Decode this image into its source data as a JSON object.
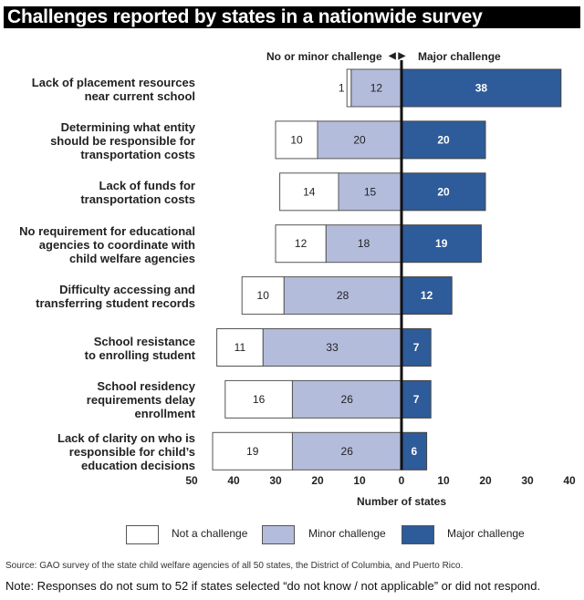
{
  "title": "Challenges reported by states in a nationwide survey",
  "direction_labels": {
    "left": "No or minor challenge",
    "arrows": "◀ ▶",
    "right": "Major challenge"
  },
  "chart_data": {
    "type": "bar",
    "subtype": "diverging-stacked-horizontal",
    "title": "Challenges reported by states in a nationwide survey",
    "xlabel": "Number of states",
    "ylabel": "",
    "xlim": [
      -50,
      40
    ],
    "x_ticks": [
      -50,
      -40,
      -30,
      -20,
      -10,
      0,
      10,
      20,
      30,
      40
    ],
    "x_tick_labels": [
      "50",
      "40",
      "30",
      "20",
      "10",
      "0",
      "10",
      "20",
      "30",
      "40"
    ],
    "categories": [
      "Lack of placement resources\nnear current school",
      "Determining what entity\nshould be responsible for\ntransportation costs",
      "Lack of funds for\ntransportation costs",
      "No requirement for educational\nagencies to coordinate with\nchild welfare agencies",
      "Difficulty accessing and\ntransferring student records",
      "School resistance\nto enrolling student",
      "School residency\nrequirements delay\nenrollment",
      "Lack of clarity on who is\nresponsible for child’s\neducation decisions"
    ],
    "series": [
      {
        "name": "Not a challenge",
        "side": "left-outer",
        "color": "#ffffff",
        "values": [
          1,
          10,
          14,
          12,
          10,
          11,
          16,
          19
        ]
      },
      {
        "name": "Minor challenge",
        "side": "left-inner",
        "color": "#b4bcdc",
        "values": [
          12,
          20,
          15,
          18,
          28,
          33,
          26,
          26
        ]
      },
      {
        "name": "Major challenge",
        "side": "right",
        "color": "#2e5b99",
        "values": [
          38,
          20,
          20,
          19,
          12,
          7,
          7,
          6
        ]
      }
    ],
    "legend": {
      "position": "bottom",
      "entries": [
        "Not a challenge",
        "Minor challenge",
        "Major challenge"
      ]
    },
    "grid": false
  },
  "source": "Source: GAO survey of the state child welfare agencies of all 50 states, the District of Columbia, and Puerto Rico.",
  "note": "Note: Responses do not sum to 52 if states selected “do not know / not applicable” or did not respond."
}
